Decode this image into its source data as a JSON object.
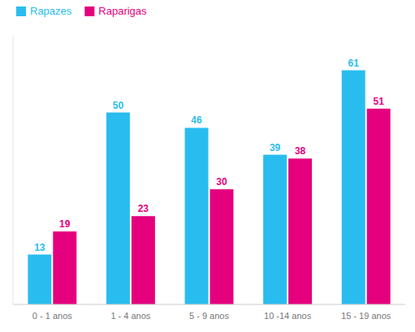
{
  "chart_data": {
    "type": "bar",
    "categories": [
      "0 - 1 anos",
      "1 - 4 anos",
      "5 - 9 anos",
      "10 -14 anos",
      "15 - 19 anos"
    ],
    "series": [
      {
        "name": "Rapazes",
        "color": "#29BDEF",
        "values": [
          13,
          50,
          46,
          39,
          61
        ]
      },
      {
        "name": "Raparigas",
        "color": "#E5007D",
        "values": [
          19,
          23,
          30,
          38,
          51
        ]
      }
    ],
    "ylim": [
      0,
      70
    ],
    "data_labels": true,
    "tick_labels": "x",
    "legend": "upper left",
    "grid": false
  }
}
